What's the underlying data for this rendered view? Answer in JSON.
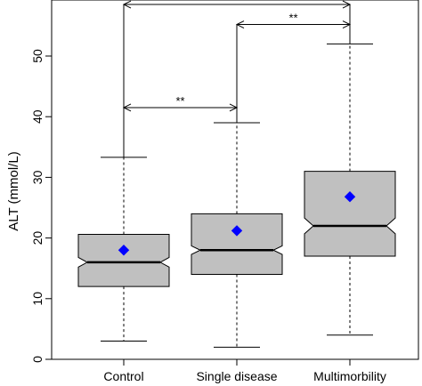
{
  "chart_data": {
    "type": "box",
    "title": "",
    "xlabel": "",
    "ylabel": "ALT (mmol/L)",
    "ylim": [
      0,
      55
    ],
    "yticks": [
      0,
      10,
      20,
      30,
      40,
      50
    ],
    "ytick_labels": [
      "0",
      "10",
      "20",
      "30",
      "40",
      "50"
    ],
    "categories": [
      "Control",
      "Single disease",
      "Multimorbility"
    ],
    "notched": true,
    "mean_marker": "diamond",
    "colors": {
      "box_fill": "#c0c0c0",
      "mean_marker": "#0000ff",
      "stroke": "#000000"
    },
    "boxes": [
      {
        "category": "Control",
        "min": 3,
        "q1": 12,
        "median": 16,
        "q3": 20.6,
        "max": 33.3,
        "mean": 18,
        "notch_low": 15.2,
        "notch_high": 16.8
      },
      {
        "category": "Single disease",
        "min": 2,
        "q1": 14,
        "median": 18,
        "q3": 24,
        "max": 39,
        "mean": 21.2,
        "notch_low": 17.3,
        "notch_high": 18.7
      },
      {
        "category": "Multimorbility",
        "min": 4,
        "q1": 17,
        "median": 22,
        "q3": 31,
        "max": 52,
        "mean": 26.8,
        "notch_low": 20.7,
        "notch_high": 23.3
      }
    ],
    "annotations": [
      {
        "from": "Control",
        "to": "Multimorbility",
        "y": 58.5,
        "label": "**"
      },
      {
        "from": "Single disease",
        "to": "Multimorbility",
        "y": 55.2,
        "label": "**"
      },
      {
        "from": "Control",
        "to": "Single disease",
        "y": 41.5,
        "label": "**"
      }
    ]
  }
}
